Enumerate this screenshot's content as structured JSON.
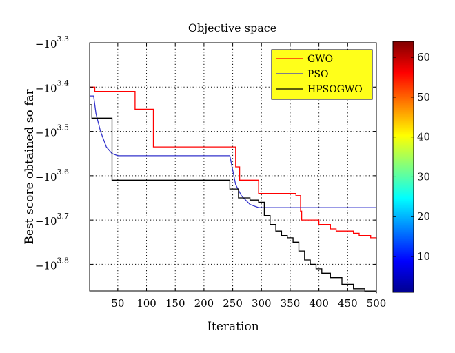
{
  "chart_data": {
    "type": "line",
    "title": "Objective space",
    "xlabel": "Iteration",
    "ylabel": "Best score obtained so far",
    "xlim": [
      1,
      500
    ],
    "ylim_exponent": [
      3.3,
      3.86
    ],
    "y_scale": "log (negative values, -10^k)",
    "grid": true,
    "legend_position": "top-right",
    "x_ticks": [
      "50",
      "100",
      "150",
      "200",
      "250",
      "300",
      "350",
      "400",
      "450",
      "500"
    ],
    "y_ticks": [
      {
        "base": "−10",
        "exp": "3.3",
        "k": 3.3
      },
      {
        "base": "−10",
        "exp": "3.4",
        "k": 3.4
      },
      {
        "base": "−10",
        "exp": "3.5",
        "k": 3.5
      },
      {
        "base": "−10",
        "exp": "3.6",
        "k": 3.6
      },
      {
        "base": "−10",
        "exp": "3.7",
        "k": 3.7
      },
      {
        "base": "−10",
        "exp": "3.8",
        "k": 3.8
      }
    ],
    "series": [
      {
        "name": "GWO",
        "color": "#ff0000",
        "step": true,
        "x": [
          1,
          10,
          80,
          112,
          245,
          255,
          262,
          290,
          295,
          300,
          360,
          368,
          370,
          390,
          400,
          420,
          430,
          460,
          470,
          490,
          500
        ],
        "k": [
          3.4,
          3.41,
          3.45,
          3.535,
          3.535,
          3.58,
          3.61,
          3.61,
          3.64,
          3.64,
          3.645,
          3.68,
          3.7,
          3.7,
          3.71,
          3.72,
          3.725,
          3.73,
          3.735,
          3.74,
          3.743
        ]
      },
      {
        "name": "PSO",
        "color": "#3333cc",
        "step": false,
        "x": [
          1,
          8,
          12,
          20,
          30,
          40,
          50,
          70,
          245,
          255,
          265,
          280,
          295,
          320,
          500
        ],
        "k": [
          3.42,
          3.42,
          3.46,
          3.5,
          3.535,
          3.55,
          3.555,
          3.555,
          3.555,
          3.62,
          3.645,
          3.665,
          3.672,
          3.672,
          3.672
        ]
      },
      {
        "name": "HPSOGWO",
        "color": "#000000",
        "step": true,
        "x": [
          1,
          5,
          40,
          245,
          260,
          280,
          295,
          305,
          315,
          325,
          335,
          345,
          355,
          365,
          375,
          385,
          395,
          405,
          420,
          440,
          460,
          480,
          500
        ],
        "k": [
          3.44,
          3.47,
          3.61,
          3.63,
          3.65,
          3.655,
          3.66,
          3.69,
          3.71,
          3.725,
          3.735,
          3.74,
          3.75,
          3.77,
          3.79,
          3.8,
          3.81,
          3.82,
          3.83,
          3.845,
          3.855,
          3.862,
          3.865
        ]
      }
    ],
    "colorbar": {
      "range": [
        1,
        64
      ],
      "ticks": [
        "10",
        "20",
        "30",
        "40",
        "50",
        "60"
      ],
      "tick_values": [
        10,
        20,
        30,
        40,
        50,
        60
      ],
      "colormap": "jet"
    }
  }
}
